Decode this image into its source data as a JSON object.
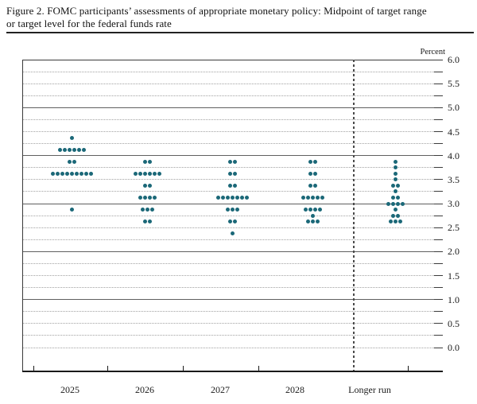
{
  "title": {
    "line1": "Figure 2. FOMC participants’ assessments of appropriate monetary policy: Midpoint of target range",
    "line2": "or target level for the federal funds rate"
  },
  "y_axis": {
    "unit_label": "Percent",
    "tick_labels": [
      "6.0",
      "5.5",
      "5.0",
      "4.5",
      "4.0",
      "3.5",
      "3.0",
      "2.5",
      "2.0",
      "1.5",
      "1.0",
      "0.5",
      "0.0"
    ]
  },
  "x_axis": {
    "categories": [
      "2025",
      "2026",
      "2027",
      "2028",
      "Longer run"
    ]
  },
  "chart_data": {
    "type": "scatter",
    "subtype": "fomc-dot-plot",
    "title": "FOMC participants’ assessments of appropriate monetary policy: Midpoint of target range or target level for the federal funds rate",
    "ylabel": "Percent",
    "ylim": [
      0.0,
      6.0
    ],
    "gridline_interval": 0.25,
    "label_interval": 0.5,
    "grid": "solid lines at whole percents, dotted lines at quarter percents",
    "legend_position": "none",
    "separator": "dashed vertical line between 2028 and Longer run",
    "categories": [
      "2025",
      "2026",
      "2027",
      "2028",
      "Longer run"
    ],
    "series": [
      {
        "category": "2025",
        "dots": [
          {
            "rate": 4.375,
            "count": 1
          },
          {
            "rate": 4.125,
            "count": 6
          },
          {
            "rate": 3.875,
            "count": 2
          },
          {
            "rate": 3.625,
            "count": 9
          },
          {
            "rate": 2.875,
            "count": 1
          }
        ]
      },
      {
        "category": "2026",
        "dots": [
          {
            "rate": 3.875,
            "count": 2
          },
          {
            "rate": 3.625,
            "count": 6
          },
          {
            "rate": 3.375,
            "count": 2
          },
          {
            "rate": 3.125,
            "count": 4
          },
          {
            "rate": 2.875,
            "count": 3
          },
          {
            "rate": 2.625,
            "count": 2
          }
        ]
      },
      {
        "category": "2027",
        "dots": [
          {
            "rate": 3.875,
            "count": 2
          },
          {
            "rate": 3.625,
            "count": 2
          },
          {
            "rate": 3.375,
            "count": 2
          },
          {
            "rate": 3.125,
            "count": 7
          },
          {
            "rate": 2.875,
            "count": 3
          },
          {
            "rate": 2.625,
            "count": 2
          },
          {
            "rate": 2.375,
            "count": 1
          }
        ]
      },
      {
        "category": "2028",
        "dots": [
          {
            "rate": 3.875,
            "count": 2
          },
          {
            "rate": 3.625,
            "count": 2
          },
          {
            "rate": 3.375,
            "count": 2
          },
          {
            "rate": 3.125,
            "count": 5
          },
          {
            "rate": 2.875,
            "count": 4
          },
          {
            "rate": 2.75,
            "count": 1
          },
          {
            "rate": 2.625,
            "count": 3
          }
        ]
      },
      {
        "category": "Longer run",
        "dots": [
          {
            "rate": 3.875,
            "count": 1
          },
          {
            "rate": 3.75,
            "count": 1
          },
          {
            "rate": 3.625,
            "count": 1
          },
          {
            "rate": 3.5,
            "count": 1
          },
          {
            "rate": 3.375,
            "count": 2
          },
          {
            "rate": 3.25,
            "count": 1
          },
          {
            "rate": 3.125,
            "count": 2
          },
          {
            "rate": 3.0,
            "count": 4
          },
          {
            "rate": 2.875,
            "count": 1
          },
          {
            "rate": 2.75,
            "count": 2
          },
          {
            "rate": 2.625,
            "count": 3
          }
        ]
      }
    ],
    "colors": {
      "dot": "#1b6878",
      "solid_grid": "#606060",
      "dotted_grid": "#a2a2a2",
      "axis": "#1a1a1a"
    }
  }
}
